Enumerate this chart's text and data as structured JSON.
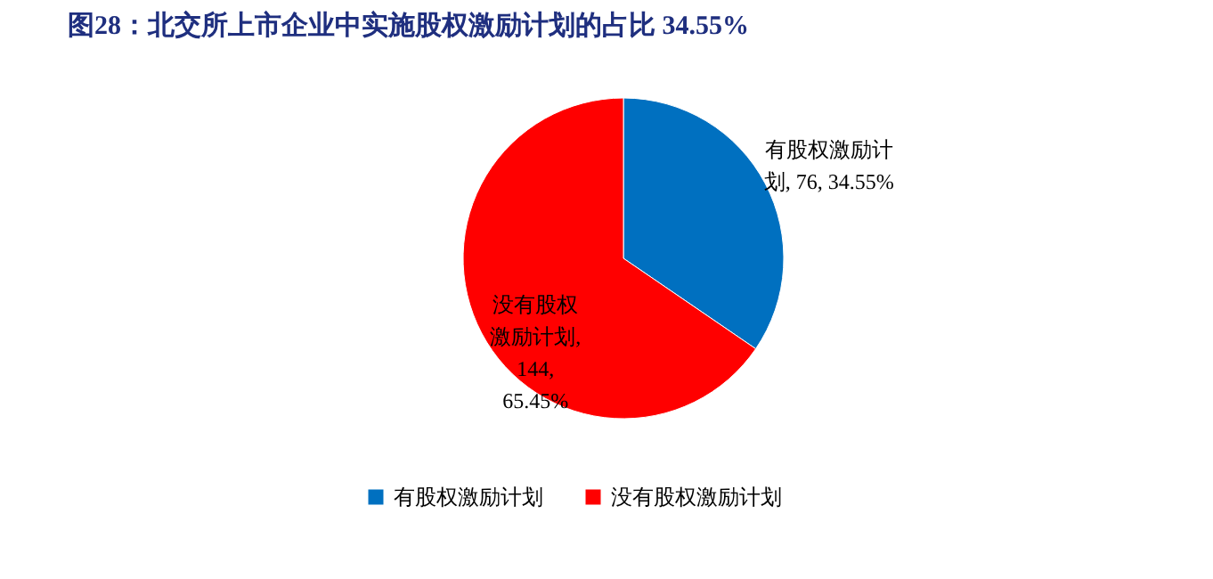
{
  "chart_data": {
    "type": "pie",
    "title": "图28：北交所上市企业中实施股权激励计划的占比 34.55%",
    "categories": [
      "有股权激励计划",
      "没有股权激励计划"
    ],
    "values": [
      76,
      144
    ],
    "colors": [
      "#0070c0",
      "#ff0000"
    ],
    "value_labels": [
      "有股权激励计划, 76, 34.55%",
      "没有股权激励计划, 144, 65.45%"
    ],
    "legend": "bottom"
  }
}
